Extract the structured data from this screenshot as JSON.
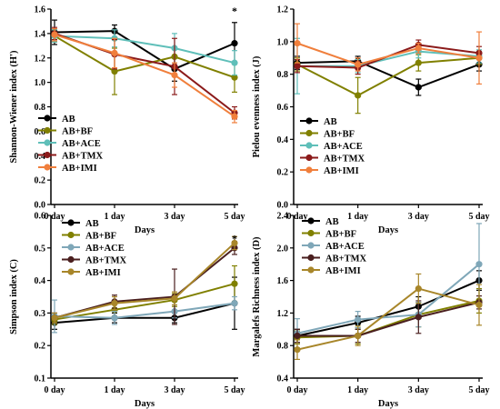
{
  "chart_data": [
    {
      "type": "line",
      "categories": [
        "0 day",
        "1 day",
        "3 day",
        "5 day"
      ],
      "xlabel": "Days",
      "ylabel": "Shannon-Wiener index (H')",
      "ylim": [
        0,
        1.6
      ],
      "yticks": [
        "0.0",
        "0.2",
        "0.4",
        "0.6",
        "0.8",
        "1.0",
        "1.2",
        "1.4",
        "1.6"
      ],
      "legend": "bottom-left",
      "annotations": [
        {
          "category": "5 day",
          "y": 1.6,
          "text": "*"
        }
      ],
      "series": [
        {
          "name": "AB",
          "color": "#000000",
          "values": [
            1.41,
            1.42,
            1.11,
            1.32
          ],
          "err": [
            0.1,
            0.05,
            0.1,
            0.17
          ]
        },
        {
          "name": "AB+BF",
          "color": "#808000",
          "values": [
            1.38,
            1.09,
            1.21,
            1.04
          ],
          "err": [
            0.05,
            0.19,
            0.08,
            0.12
          ]
        },
        {
          "name": "AB+ACE",
          "color": "#5FBFB9",
          "values": [
            1.38,
            1.36,
            1.28,
            1.16
          ],
          "err": [
            0.05,
            0.07,
            0.12,
            0.1
          ]
        },
        {
          "name": "AB+TMX",
          "color": "#8B1A1A",
          "values": [
            1.4,
            1.23,
            1.13,
            0.75
          ],
          "err": [
            0.05,
            0.12,
            0.23,
            0.05
          ]
        },
        {
          "name": "AB+IMI",
          "color": "#F07F3C",
          "values": [
            1.39,
            1.24,
            1.06,
            0.72
          ],
          "err": [
            0.05,
            0.12,
            0.1,
            0.05
          ]
        }
      ]
    },
    {
      "type": "line",
      "categories": [
        "0 day",
        "1 day",
        "3 day",
        "5 day"
      ],
      "xlabel": "Days",
      "ylabel": "Pielou evenness index (J)",
      "ylim": [
        0,
        1.2
      ],
      "yticks": [
        "0.0",
        "0.2",
        "0.4",
        "0.6",
        "0.8",
        "1.0",
        "1.2"
      ],
      "legend": "bottom-left",
      "series": [
        {
          "name": "AB",
          "color": "#000000",
          "values": [
            0.87,
            0.88,
            0.72,
            0.86
          ],
          "err": [
            0.04,
            0.03,
            0.05,
            0.04
          ]
        },
        {
          "name": "AB+BF",
          "color": "#808000",
          "values": [
            0.86,
            0.67,
            0.87,
            0.9
          ],
          "err": [
            0.04,
            0.11,
            0.05,
            0.04
          ]
        },
        {
          "name": "AB+ACE",
          "color": "#5FBFB9",
          "values": [
            0.85,
            0.85,
            0.94,
            0.91
          ],
          "err": [
            0.17,
            0.04,
            0.04,
            0.04
          ]
        },
        {
          "name": "AB+TMX",
          "color": "#8B1A1A",
          "values": [
            0.85,
            0.84,
            0.98,
            0.93
          ],
          "err": [
            0.04,
            0.04,
            0.03,
            0.04
          ]
        },
        {
          "name": "AB+IMI",
          "color": "#F07F3C",
          "values": [
            0.99,
            0.86,
            0.96,
            0.9
          ],
          "err": [
            0.12,
            0.04,
            0.03,
            0.16
          ]
        }
      ]
    },
    {
      "type": "line",
      "categories": [
        "0 day",
        "1 day",
        "3 day",
        "5 day"
      ],
      "xlabel": "Days",
      "ylabel": "Simpson index (C)",
      "ylim": [
        0.1,
        0.6
      ],
      "yticks": [
        "0.1",
        "0.2",
        "0.3",
        "0.4",
        "0.5",
        "0.6"
      ],
      "legend": "top-left",
      "annotations": [
        {
          "category": "5 day",
          "y": 0.535,
          "text": "*"
        }
      ],
      "series": [
        {
          "name": "AB",
          "color": "#000000",
          "values": [
            0.27,
            0.285,
            0.285,
            0.33
          ],
          "err": [
            0.02,
            0.015,
            0.015,
            0.08
          ]
        },
        {
          "name": "AB+BF",
          "color": "#808000",
          "values": [
            0.28,
            0.31,
            0.34,
            0.39
          ],
          "err": [
            0.015,
            0.02,
            0.02,
            0.055
          ]
        },
        {
          "name": "AB+ACE",
          "color": "#7FA7B8",
          "values": [
            0.29,
            0.285,
            0.305,
            0.33
          ],
          "err": [
            0.05,
            0.02,
            0.02,
            0.02
          ]
        },
        {
          "name": "AB+TMX",
          "color": "#4A1F1F",
          "values": [
            0.285,
            0.335,
            0.35,
            0.5
          ],
          "err": [
            0.015,
            0.02,
            0.085,
            0.02
          ]
        },
        {
          "name": "AB+IMI",
          "color": "#A8862A",
          "values": [
            0.285,
            0.33,
            0.345,
            0.515
          ],
          "err": [
            0.015,
            0.02,
            0.02,
            0.02
          ]
        }
      ]
    },
    {
      "type": "line",
      "categories": [
        "0 day",
        "1 day",
        "3 day",
        "5 day"
      ],
      "xlabel": "Days",
      "ylabel": "Margalefs Richness index (D)",
      "ylim": [
        0.4,
        2.4
      ],
      "yticks": [
        "0.4",
        "0.8",
        "1.2",
        "1.6",
        "2.0",
        "2.4"
      ],
      "legend": "top-left",
      "series": [
        {
          "name": "AB",
          "color": "#000000",
          "values": [
            0.92,
            1.08,
            1.28,
            1.6
          ],
          "err": [
            0.08,
            0.08,
            0.12,
            0.12
          ]
        },
        {
          "name": "AB+BF",
          "color": "#808000",
          "values": [
            0.9,
            0.92,
            1.18,
            1.35
          ],
          "err": [
            0.08,
            0.1,
            0.15,
            0.15
          ]
        },
        {
          "name": "AB+ACE",
          "color": "#7FA7B8",
          "values": [
            0.95,
            1.12,
            1.18,
            1.8
          ],
          "err": [
            0.18,
            0.1,
            0.15,
            0.5
          ]
        },
        {
          "name": "AB+TMX",
          "color": "#4A1F1F",
          "values": [
            0.92,
            0.92,
            1.15,
            1.33
          ],
          "err": [
            0.08,
            0.08,
            0.2,
            0.08
          ]
        },
        {
          "name": "AB+IMI",
          "color": "#A8862A",
          "values": [
            0.75,
            0.92,
            1.5,
            1.3
          ],
          "err": [
            0.12,
            0.12,
            0.18,
            0.25
          ]
        }
      ]
    }
  ]
}
